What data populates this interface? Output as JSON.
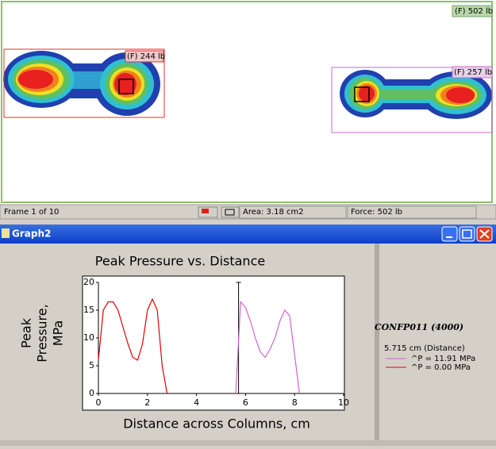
{
  "sensor_view": {
    "total_force": "(F) 502 lb",
    "regions": [
      {
        "force": "(F) 244 lb"
      },
      {
        "force": "(F) 257 lb"
      }
    ]
  },
  "status_bar": {
    "frame": "Frame 1 of 10",
    "area": "Area: 3.18 cm2",
    "force": "Force: 502 lb"
  },
  "window": {
    "title": "Graph2"
  },
  "legend_panel": {
    "file": "CONFP011 (4000)",
    "cursor": "5.715 cm (Distance)"
  },
  "chart_data": {
    "type": "line",
    "title": "Peak Pressure vs. Distance",
    "y_label": [
      "Peak",
      "Pressure,",
      "MPa"
    ],
    "x_label": "Distance across Columns, cm",
    "x": [
      0,
      0.2,
      0.4,
      0.6,
      0.8,
      1.0,
      1.2,
      1.4,
      1.6,
      1.8,
      2.0,
      2.2,
      2.4,
      2.6,
      2.8,
      5.6,
      5.8,
      6.0,
      6.2,
      6.4,
      6.6,
      6.8,
      7.0,
      7.2,
      7.4,
      7.6,
      7.8,
      8.0,
      8.2
    ],
    "series": [
      {
        "name": "^P = 11.91 MPa",
        "color": "#cc66cc",
        "values": [
          null,
          null,
          null,
          null,
          null,
          null,
          null,
          null,
          null,
          null,
          null,
          null,
          null,
          null,
          null,
          0,
          16.5,
          15.5,
          13,
          10,
          7.5,
          6.5,
          8,
          10,
          13,
          15,
          14,
          7,
          0
        ]
      },
      {
        "name": "^P = 0.00 MPa",
        "color": "#e00000",
        "values": [
          6,
          15,
          16.5,
          16.5,
          15,
          12,
          9,
          6.5,
          6,
          9,
          15,
          17,
          15,
          5,
          0,
          null,
          null,
          null,
          null,
          null,
          null,
          null,
          null,
          null,
          null,
          null,
          null,
          null,
          null
        ]
      }
    ],
    "cursor_x": 5.715,
    "xlim": [
      0,
      10
    ],
    "xticks": [
      0,
      2,
      4,
      6,
      8,
      10
    ],
    "ylim": [
      0,
      20
    ],
    "yticks": [
      0,
      5,
      10,
      15,
      20
    ]
  }
}
